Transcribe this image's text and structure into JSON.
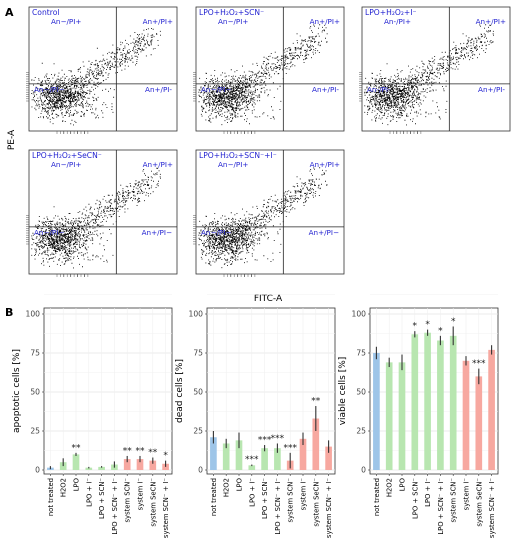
{
  "panel_a": {
    "letter": "A",
    "ylabel": "PE-A",
    "xlabel": "FITC-A",
    "plots": [
      {
        "title": "Control",
        "q_ul": "An−/PI+",
        "q_ur": "An+/PI+",
        "q_ll": "An−/PI−",
        "q_lr": "An+/PI-"
      },
      {
        "title": "LPO+H₂O₂+SCN⁻",
        "q_ul": "An−/PI+",
        "q_ur": "An+/PI+",
        "q_ll": "An−/PI−",
        "q_lr": "An+/PI-"
      },
      {
        "title": "LPO+H₂O₂+I⁻",
        "q_ul": "An-/PI+",
        "q_ur": "An+/PI+",
        "q_ll": "An-/PI-",
        "q_lr": "An+/PI-"
      },
      {
        "title": "LPO+H₂O₂+SeCN⁻",
        "q_ul": "An−/PI+",
        "q_ur": "An+/PI+",
        "q_ll": "An−/PI−",
        "q_lr": "An+/PI−"
      },
      {
        "title": "LPO+H₂O₂+SCN⁻+I⁻",
        "q_ul": "An−/PI+",
        "q_ur": "An+/PI+",
        "q_ll": "An−/PI−",
        "q_lr": "An+/PI−"
      }
    ]
  },
  "panel_b_letter": "B",
  "chart_data": [
    {
      "type": "bar",
      "ylabel": "apoptotic cells [%]",
      "ylim": [
        0,
        100
      ],
      "yticks": [
        "0",
        "25",
        "50",
        "75",
        "100"
      ],
      "categories": [
        "not treated",
        "H2O2",
        "LPO",
        "LPO + I⁻",
        "LPO + SCN⁻",
        "LPO + SCN⁻ + I⁻",
        "system SCN⁻",
        "system I⁻",
        "system SeCN⁻",
        "system SCN⁻ + I⁻"
      ],
      "values": [
        1.5,
        5,
        10,
        1.5,
        2,
        3.5,
        7,
        7,
        6,
        4
      ],
      "errors": [
        1,
        2.5,
        1,
        0.5,
        0.5,
        2,
        2,
        2,
        2,
        2
      ],
      "significance": [
        "",
        "",
        "**",
        "",
        "",
        "",
        "**",
        "**",
        "**",
        "*"
      ],
      "colors": [
        "#9ec5e8",
        "#b8e6b0",
        "#b8e6b0",
        "#b8e6b0",
        "#b8e6b0",
        "#b8e6b0",
        "#f7a8a0",
        "#f7a8a0",
        "#f7a8a0",
        "#f7a8a0"
      ],
      "grid": true
    },
    {
      "type": "bar",
      "ylabel": "dead cells [%]",
      "ylim": [
        0,
        100
      ],
      "yticks": [
        "0",
        "25",
        "50",
        "75",
        "100"
      ],
      "categories": [
        "not treated",
        "H2O2",
        "LPO",
        "LPO + I⁻",
        "LPO + SCN⁻",
        "LPO + SCN⁻ + I⁻",
        "system SCN⁻",
        "system I⁻",
        "system SeCN⁻",
        "system SCN⁻ + I⁻"
      ],
      "values": [
        21,
        17,
        19,
        3,
        14,
        14,
        6,
        20,
        33,
        15
      ],
      "errors": [
        4,
        3,
        5,
        0.5,
        2,
        3,
        5,
        4,
        8,
        4
      ],
      "significance": [
        "",
        "",
        "",
        "***",
        "***",
        "***",
        "***",
        "",
        "**",
        ""
      ],
      "colors": [
        "#9ec5e8",
        "#b8e6b0",
        "#b8e6b0",
        "#b8e6b0",
        "#b8e6b0",
        "#b8e6b0",
        "#f7a8a0",
        "#f7a8a0",
        "#f7a8a0",
        "#f7a8a0"
      ],
      "grid": true
    },
    {
      "type": "bar",
      "ylabel": "viable cells [%]",
      "ylim": [
        0,
        100
      ],
      "yticks": [
        "0",
        "25",
        "50",
        "75",
        "100"
      ],
      "categories": [
        "not treated",
        "H2O2",
        "LPO",
        "LPO + SCN⁻",
        "LPO + I⁻",
        "LPO + SCN⁻ + I⁻",
        "system SCN⁻",
        "system I⁻",
        "system SeCN⁻",
        "system SCN⁻ + I⁻"
      ],
      "values": [
        75,
        69,
        69,
        87,
        88,
        83,
        86,
        70,
        60,
        77
      ],
      "errors": [
        4,
        3,
        5,
        2,
        2,
        3,
        6,
        3,
        5,
        3
      ],
      "significance": [
        "",
        "",
        "",
        "*",
        "*",
        "*",
        "*",
        "",
        "***",
        ""
      ],
      "colors": [
        "#9ec5e8",
        "#b8e6b0",
        "#b8e6b0",
        "#b8e6b0",
        "#b8e6b0",
        "#b8e6b0",
        "#b8e6b0",
        "#f7a8a0",
        "#f7a8a0",
        "#f7a8a0"
      ],
      "grid": true
    }
  ]
}
